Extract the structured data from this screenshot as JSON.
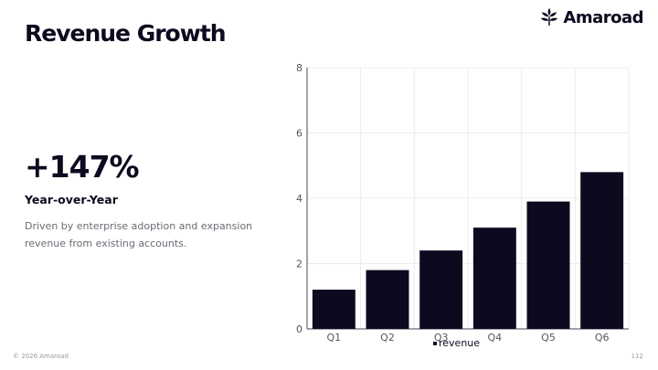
{
  "brand": {
    "name": "Amaroad",
    "icon": "leaf-logo-icon"
  },
  "slide": {
    "title": "Revenue Growth",
    "kpi_value": "+147%",
    "kpi_label": "Year-over-Year",
    "kpi_description": "Driven by enterprise adoption and expansion revenue from existing accounts."
  },
  "footer": {
    "copyright": "© 2026 Amaroad",
    "page_number": "112"
  },
  "colors": {
    "bar": "#0b0a1f",
    "grid": "#ececef",
    "text": "#0b0a1f",
    "muted": "#6b6b75"
  },
  "chart_data": {
    "type": "bar",
    "categories": [
      "Q1",
      "Q2",
      "Q3",
      "Q4",
      "Q5",
      "Q6"
    ],
    "series": [
      {
        "name": "revenue",
        "values": [
          1.2,
          1.8,
          2.4,
          3.1,
          3.9,
          4.8
        ]
      }
    ],
    "yticks": [
      0,
      2,
      4,
      6,
      8
    ],
    "ylim": [
      0,
      8
    ],
    "grid": true,
    "legend": "bottom-center"
  }
}
